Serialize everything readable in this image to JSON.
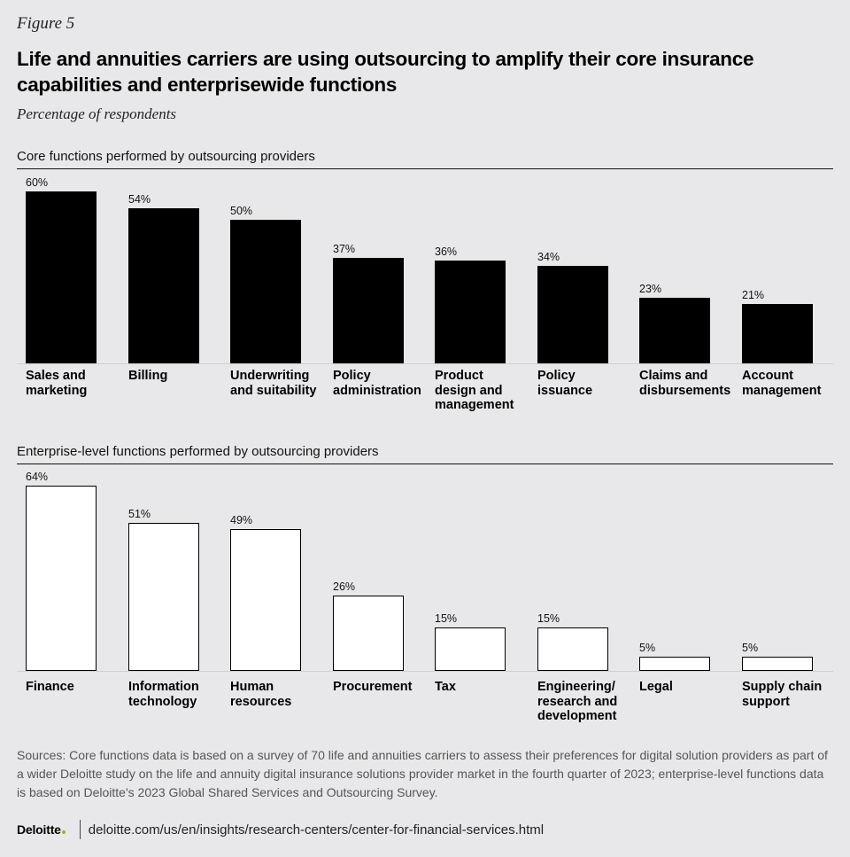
{
  "figure_label": "Figure 5",
  "title": "Life and annuities carriers are using outsourcing to amplify their core insurance capabilities and enterprisewide functions",
  "subtitle": "Percentage of respondents",
  "chart_data": [
    {
      "type": "bar",
      "title": "Core functions performed by outsourcing providers",
      "categories": [
        "Sales and\nmarketing",
        "Billing",
        "Underwriting\nand suitability",
        "Policy\nadministration",
        "Product\ndesign and\nmanagement",
        "Policy\nissuance",
        "Claims and\ndisbursements",
        "Account\nmanagement"
      ],
      "values": [
        60,
        54,
        50,
        37,
        36,
        34,
        23,
        21
      ],
      "value_labels": [
        "60%",
        "54%",
        "50%",
        "37%",
        "36%",
        "34%",
        "23%",
        "21%"
      ],
      "ylim": [
        0,
        60
      ],
      "fill": "#000000"
    },
    {
      "type": "bar",
      "title": "Enterprise-level functions performed by outsourcing providers",
      "categories": [
        "Finance",
        "Information\ntechnology",
        "Human\nresources",
        "Procurement",
        "Tax",
        "Engineering/\nresearch and\ndevelopment",
        "Legal",
        "Supply chain\nsupport"
      ],
      "values": [
        64,
        51,
        49,
        26,
        15,
        15,
        5,
        5
      ],
      "value_labels": [
        "64%",
        "51%",
        "49%",
        "26%",
        "15%",
        "15%",
        "5%",
        "5%"
      ],
      "ylim": [
        0,
        64
      ],
      "fill": "#ffffff"
    }
  ],
  "sources": "Sources: Core functions data is based on a survey of 70 life and annuities carriers to assess their preferences for digital solution providers as part of a wider Deloitte study on the life and annuity digital insurance solutions provider market in the fourth quarter of 2023; enterprise-level functions data is based on Deloitte's 2023 Global Shared Services and Outsourcing Survey.",
  "footer": {
    "logo": "Deloitte",
    "url": "deloitte.com/us/en/insights/research-centers/center-for-financial-services.html"
  }
}
